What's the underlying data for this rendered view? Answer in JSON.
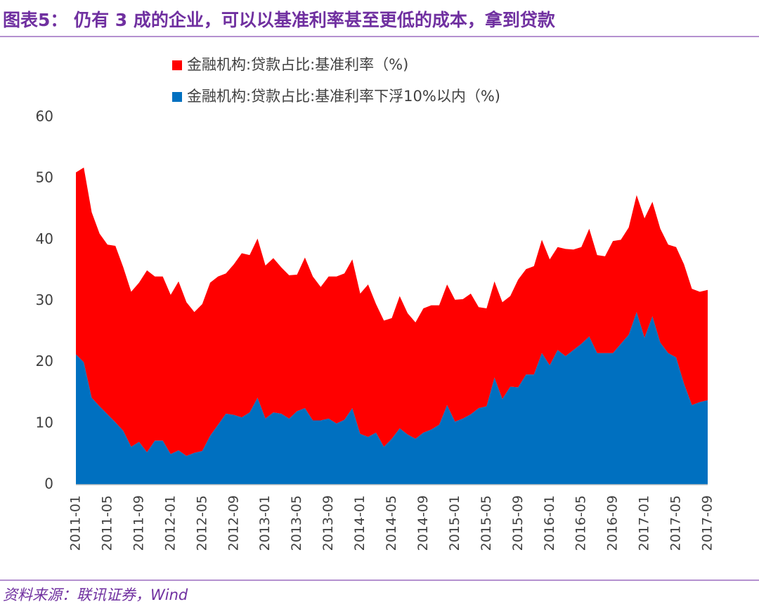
{
  "chart_data": {
    "type": "stacked_area",
    "title": "图表5： 仍有 3 成的企业，可以以基准利率甚至更低的成本，拿到贷款",
    "source": "资料来源：联讯证券，Wind",
    "categories": [
      "2011-01",
      null,
      null,
      null,
      "2011-05",
      null,
      null,
      null,
      "2011-09",
      null,
      null,
      null,
      "2012-01",
      null,
      null,
      null,
      "2012-05",
      null,
      null,
      null,
      "2012-09",
      null,
      null,
      null,
      "2013-01",
      null,
      null,
      null,
      "2013-05",
      null,
      null,
      null,
      "2013-09",
      null,
      null,
      null,
      "2014-01",
      null,
      null,
      null,
      "2014-05",
      null,
      null,
      null,
      "2014-09",
      null,
      null,
      null,
      "2015-01",
      null,
      null,
      null,
      "2015-05",
      null,
      null,
      null,
      "2015-09",
      null,
      null,
      null,
      "2016-01",
      null,
      null,
      null,
      "2016-05",
      null,
      null,
      null,
      "2016-09",
      null,
      null,
      null,
      "2017-01",
      null,
      null,
      null,
      "2017-05",
      null,
      null,
      null,
      "2017-09"
    ],
    "series": [
      {
        "name": "金融机构:贷款占比:基准利率（%)",
        "color": "#ff0000",
        "values": [
          29.7,
          31.8,
          30.3,
          28.2,
          27.7,
          28.8,
          26.7,
          25.3,
          26,
          29.7,
          26.8,
          26.8,
          26,
          27.6,
          25.1,
          23,
          24,
          25,
          24.2,
          22.9,
          24.6,
          26.8,
          25.7,
          26,
          25,
          25.2,
          23.9,
          23.4,
          22.3,
          24.6,
          23.5,
          21.8,
          23.2,
          24,
          23.9,
          24.3,
          22.9,
          24.9,
          21,
          20.6,
          19.7,
          21.6,
          19.8,
          19,
          20.3,
          20.3,
          19.5,
          19.7,
          19.9,
          19.5,
          19.7,
          16.5,
          16,
          15.7,
          15.8,
          14.8,
          17.6,
          17.2,
          17.7,
          18.5,
          17.3,
          16.8,
          17.5,
          16.4,
          15.8,
          17.6,
          16,
          15.8,
          18.3,
          17,
          17.5,
          19.1,
          19.5,
          18.7,
          18.6,
          17.7,
          18,
          19.5,
          19,
          18,
          18
        ]
      },
      {
        "name": "金融机构:贷款占比:基准利率下浮10%以内（%)",
        "color": "#0070c0",
        "values": [
          21.3,
          20,
          14.2,
          12.8,
          11.5,
          10.2,
          8.8,
          6.2,
          7,
          5.3,
          7.2,
          7.2,
          5,
          5.6,
          4.7,
          5.2,
          5.5,
          8,
          9.8,
          11.6,
          11.4,
          11,
          11.8,
          14.2,
          10.8,
          11.8,
          11.6,
          10.8,
          12,
          12.5,
          10.5,
          10.5,
          10.8,
          10,
          10.6,
          12.5,
          8.3,
          7.8,
          8.5,
          6.2,
          7.5,
          9.2,
          8.2,
          7.5,
          8.5,
          9,
          9.8,
          13,
          10.3,
          10.8,
          11.5,
          12.5,
          12.8,
          17.5,
          14,
          16,
          15.9,
          18,
          18,
          21.5,
          19.5,
          22,
          21,
          22,
          23,
          24.2,
          21.5,
          21.5,
          21.5,
          23,
          24.5,
          28.2,
          24,
          27.5,
          23.2,
          21.5,
          20.8,
          16.5,
          13,
          13.5,
          13.8
        ]
      }
    ],
    "ylim": [
      0,
      60
    ],
    "yticks": [
      0,
      10,
      20,
      30,
      40,
      50,
      60
    ],
    "grid": false,
    "legend": "top"
  }
}
